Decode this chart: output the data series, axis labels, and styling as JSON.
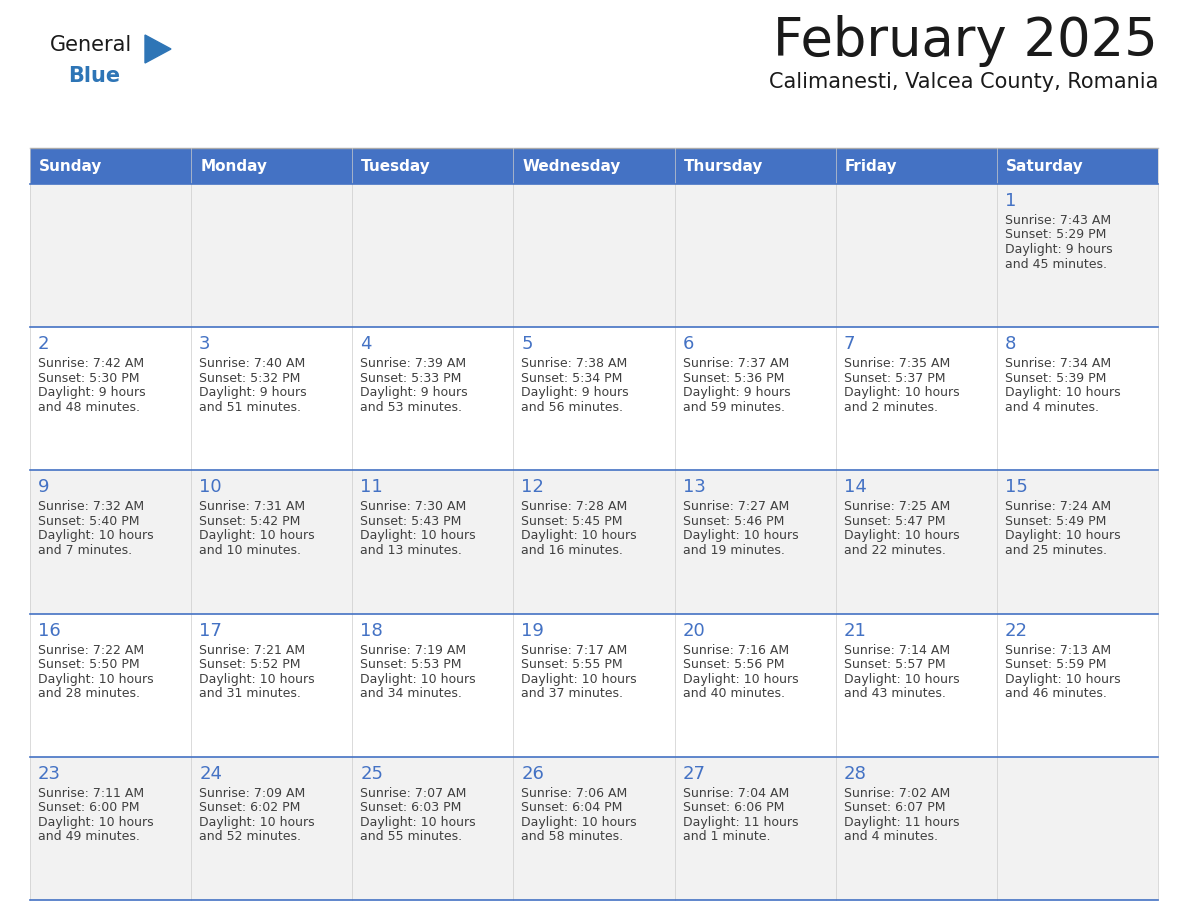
{
  "title": "February 2025",
  "subtitle": "Calimanesti, Valcea County, Romania",
  "days_of_week": [
    "Sunday",
    "Monday",
    "Tuesday",
    "Wednesday",
    "Thursday",
    "Friday",
    "Saturday"
  ],
  "header_bg": "#4472C4",
  "header_text": "#FFFFFF",
  "cell_bg_odd": "#F2F2F2",
  "cell_bg_even": "#FFFFFF",
  "border_color": "#4472C4",
  "day_number_color": "#4472C4",
  "text_color": "#404040",
  "title_color": "#1a1a1a",
  "logo_general_color": "#1a1a1a",
  "logo_blue_color": "#2E75B6",
  "fig_width": 11.88,
  "fig_height": 9.18,
  "calendar_data": [
    [
      null,
      null,
      null,
      null,
      null,
      null,
      {
        "day": 1,
        "sunrise": "7:43 AM",
        "sunset": "5:29 PM",
        "daylight": "9 hours",
        "daylight2": "and 45 minutes."
      }
    ],
    [
      {
        "day": 2,
        "sunrise": "7:42 AM",
        "sunset": "5:30 PM",
        "daylight": "9 hours",
        "daylight2": "and 48 minutes."
      },
      {
        "day": 3,
        "sunrise": "7:40 AM",
        "sunset": "5:32 PM",
        "daylight": "9 hours",
        "daylight2": "and 51 minutes."
      },
      {
        "day": 4,
        "sunrise": "7:39 AM",
        "sunset": "5:33 PM",
        "daylight": "9 hours",
        "daylight2": "and 53 minutes."
      },
      {
        "day": 5,
        "sunrise": "7:38 AM",
        "sunset": "5:34 PM",
        "daylight": "9 hours",
        "daylight2": "and 56 minutes."
      },
      {
        "day": 6,
        "sunrise": "7:37 AM",
        "sunset": "5:36 PM",
        "daylight": "9 hours",
        "daylight2": "and 59 minutes."
      },
      {
        "day": 7,
        "sunrise": "7:35 AM",
        "sunset": "5:37 PM",
        "daylight": "10 hours",
        "daylight2": "and 2 minutes."
      },
      {
        "day": 8,
        "sunrise": "7:34 AM",
        "sunset": "5:39 PM",
        "daylight": "10 hours",
        "daylight2": "and 4 minutes."
      }
    ],
    [
      {
        "day": 9,
        "sunrise": "7:32 AM",
        "sunset": "5:40 PM",
        "daylight": "10 hours",
        "daylight2": "and 7 minutes."
      },
      {
        "day": 10,
        "sunrise": "7:31 AM",
        "sunset": "5:42 PM",
        "daylight": "10 hours",
        "daylight2": "and 10 minutes."
      },
      {
        "day": 11,
        "sunrise": "7:30 AM",
        "sunset": "5:43 PM",
        "daylight": "10 hours",
        "daylight2": "and 13 minutes."
      },
      {
        "day": 12,
        "sunrise": "7:28 AM",
        "sunset": "5:45 PM",
        "daylight": "10 hours",
        "daylight2": "and 16 minutes."
      },
      {
        "day": 13,
        "sunrise": "7:27 AM",
        "sunset": "5:46 PM",
        "daylight": "10 hours",
        "daylight2": "and 19 minutes."
      },
      {
        "day": 14,
        "sunrise": "7:25 AM",
        "sunset": "5:47 PM",
        "daylight": "10 hours",
        "daylight2": "and 22 minutes."
      },
      {
        "day": 15,
        "sunrise": "7:24 AM",
        "sunset": "5:49 PM",
        "daylight": "10 hours",
        "daylight2": "and 25 minutes."
      }
    ],
    [
      {
        "day": 16,
        "sunrise": "7:22 AM",
        "sunset": "5:50 PM",
        "daylight": "10 hours",
        "daylight2": "and 28 minutes."
      },
      {
        "day": 17,
        "sunrise": "7:21 AM",
        "sunset": "5:52 PM",
        "daylight": "10 hours",
        "daylight2": "and 31 minutes."
      },
      {
        "day": 18,
        "sunrise": "7:19 AM",
        "sunset": "5:53 PM",
        "daylight": "10 hours",
        "daylight2": "and 34 minutes."
      },
      {
        "day": 19,
        "sunrise": "7:17 AM",
        "sunset": "5:55 PM",
        "daylight": "10 hours",
        "daylight2": "and 37 minutes."
      },
      {
        "day": 20,
        "sunrise": "7:16 AM",
        "sunset": "5:56 PM",
        "daylight": "10 hours",
        "daylight2": "and 40 minutes."
      },
      {
        "day": 21,
        "sunrise": "7:14 AM",
        "sunset": "5:57 PM",
        "daylight": "10 hours",
        "daylight2": "and 43 minutes."
      },
      {
        "day": 22,
        "sunrise": "7:13 AM",
        "sunset": "5:59 PM",
        "daylight": "10 hours",
        "daylight2": "and 46 minutes."
      }
    ],
    [
      {
        "day": 23,
        "sunrise": "7:11 AM",
        "sunset": "6:00 PM",
        "daylight": "10 hours",
        "daylight2": "and 49 minutes."
      },
      {
        "day": 24,
        "sunrise": "7:09 AM",
        "sunset": "6:02 PM",
        "daylight": "10 hours",
        "daylight2": "and 52 minutes."
      },
      {
        "day": 25,
        "sunrise": "7:07 AM",
        "sunset": "6:03 PM",
        "daylight": "10 hours",
        "daylight2": "and 55 minutes."
      },
      {
        "day": 26,
        "sunrise": "7:06 AM",
        "sunset": "6:04 PM",
        "daylight": "10 hours",
        "daylight2": "and 58 minutes."
      },
      {
        "day": 27,
        "sunrise": "7:04 AM",
        "sunset": "6:06 PM",
        "daylight": "11 hours",
        "daylight2": "and 1 minute."
      },
      {
        "day": 28,
        "sunrise": "7:02 AM",
        "sunset": "6:07 PM",
        "daylight": "11 hours",
        "daylight2": "and 4 minutes."
      },
      null
    ]
  ]
}
